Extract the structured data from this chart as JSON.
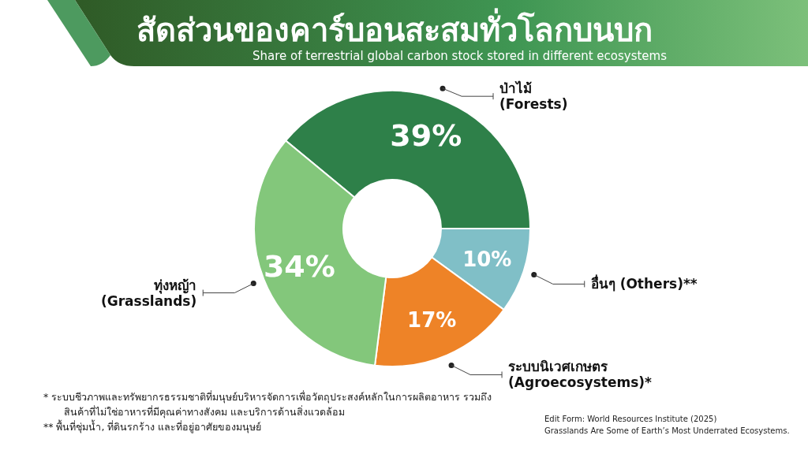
{
  "chart_data": {
    "type": "donut",
    "title": "สัดส่วนของคาร์บอนสะสมทั่วโลกบนบก",
    "subtitle": "Share of terrestrial global carbon stock stored in different ecosystems",
    "categories": [
      "ป่าไม้\n(Forests)",
      "อื่นๆ (Others)**",
      "ระบบนิเวศเกษตร\n(Agroecosystems)*",
      "ทุ่งหญ้า\n(Grasslands)"
    ],
    "values": [
      39,
      10,
      17,
      34
    ],
    "colors": [
      "#2e8049",
      "#80bfc7",
      "#ee8327",
      "#83c77b"
    ],
    "value_labels": [
      "39%",
      "10%",
      "17%",
      "34%"
    ],
    "annotations": [
      "* ระบบชีวภาพและทรัพยากรธรรมชาติที่มนุษย์บริหารจัดการเพื่อวัตถุประสงค์หลักในการผลิตอาหาร รวมถึงสินค้าที่ไม่ใช่อาหารที่มีคุณค่าทางสังคม และบริการด้านสิ่งแวดล้อม",
      "** พื้นที่ชุ่มน้ำ, ที่ดินรกร้าง และที่อยู่อาศัยของมนุษย์",
      "Edit Form: World Resources Institute (2025)",
      "Grasslands Are Some of Earth’s Most Underrated Ecosystems."
    ]
  }
}
